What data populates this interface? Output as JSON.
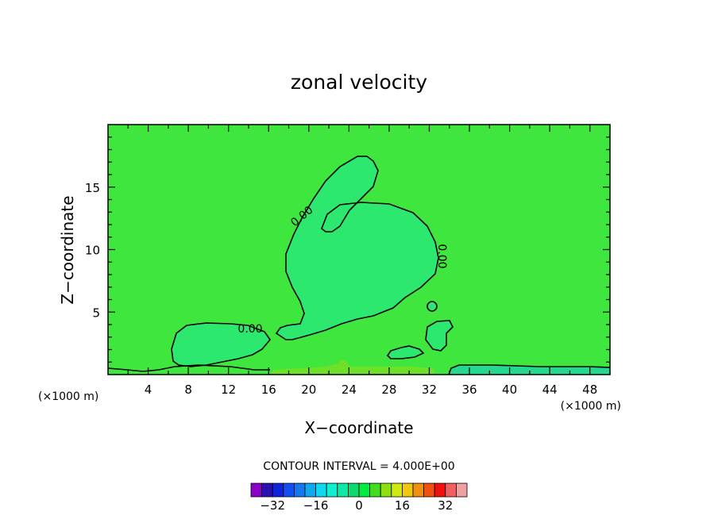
{
  "chart_data": {
    "type": "contour",
    "title": "zonal velocity",
    "xlabel": "X−coordinate",
    "ylabel": "Z−coordinate",
    "x_unit": "(×1000 m)",
    "z_unit": "(×1000 m)",
    "xlim": [
      0,
      50
    ],
    "ylim": [
      0,
      20
    ],
    "x_ticks": [
      4,
      8,
      12,
      16,
      20,
      24,
      28,
      32,
      36,
      40,
      44,
      48
    ],
    "y_ticks": [
      5,
      10,
      15
    ],
    "contour_interval_text": "CONTOUR INTERVAL = 4.000E+00",
    "contour_labels": [
      "0.00",
      "0.00",
      "0.00"
    ],
    "colorbar": {
      "levels": [
        -36,
        -32,
        -28,
        -24,
        -20,
        -16,
        -12,
        -8,
        -4,
        0,
        4,
        8,
        12,
        16,
        20,
        24,
        28,
        32,
        36
      ],
      "tick_values": [
        -32,
        -16,
        0,
        16,
        32
      ],
      "tick_labels": [
        "−32",
        "−16",
        "0",
        "16",
        "32"
      ],
      "colors": [
        "#8a00c8",
        "#2a10b0",
        "#0d24d8",
        "#1050f0",
        "#1478f0",
        "#10a8f0",
        "#10d8f0",
        "#10f0d0",
        "#10e8a8",
        "#10d870",
        "#00ec40",
        "#44dc20",
        "#8ce010",
        "#d0e810",
        "#f0c810",
        "#f09010",
        "#f05010",
        "#f01010",
        "#f06060",
        "#f0a0a0"
      ]
    },
    "colors": {
      "background_field": "#3ee63e",
      "negative_region": "#2ce86e",
      "positive_band": "#6ee028",
      "near_surface_negative": "#24d890"
    }
  }
}
